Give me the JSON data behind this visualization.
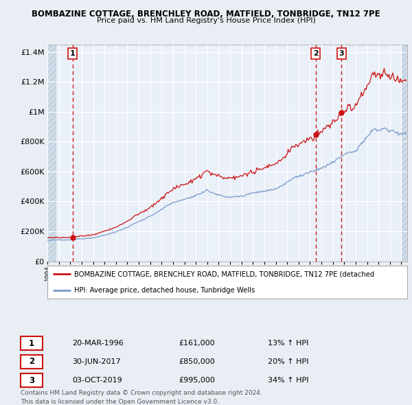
{
  "title": "BOMBAZINE COTTAGE, BRENCHLEY ROAD, MATFIELD, TONBRIDGE, TN12 7PE",
  "subtitle": "Price paid vs. HM Land Registry's House Price Index (HPI)",
  "legend_line1": "BOMBAZINE COTTAGE, BRENCHLEY ROAD, MATFIELD, TONBRIDGE, TN12 7PE (detached",
  "legend_line2": "HPI: Average price, detached house, Tunbridge Wells",
  "footer1": "Contains HM Land Registry data © Crown copyright and database right 2024.",
  "footer2": "This data is licensed under the Open Government Licence v3.0.",
  "transactions": [
    {
      "num": 1,
      "date": "20-MAR-1996",
      "price": "£161,000",
      "pct": "13% ↑ HPI",
      "year": 1996.21,
      "val": 161000
    },
    {
      "num": 2,
      "date": "30-JUN-2017",
      "price": "£850,000",
      "pct": "20% ↑ HPI",
      "year": 2017.49,
      "val": 850000
    },
    {
      "num": 3,
      "date": "03-OCT-2019",
      "price": "£995,000",
      "pct": "34% ↑ HPI",
      "year": 2019.75,
      "val": 995000
    }
  ],
  "hpi_color": "#7799cc",
  "price_color": "#cc1111",
  "bg_color": "#e8eef4",
  "plot_bg": "#eaf0f8",
  "grid_color": "#ffffff",
  "vline_color": "#cc1111",
  "marker_color": "#cc1111",
  "ylim": [
    0,
    1450000
  ],
  "xlim_start": 1994.0,
  "xlim_end": 2025.5,
  "yticks": [
    0,
    200000,
    400000,
    600000,
    800000,
    1000000,
    1200000,
    1400000
  ],
  "ytick_labels": [
    "£0",
    "£200K",
    "£400K",
    "£600K",
    "£800K",
    "£1M",
    "£1.2M",
    "£1.4M"
  ],
  "hatch_color": "#b8ccd8"
}
